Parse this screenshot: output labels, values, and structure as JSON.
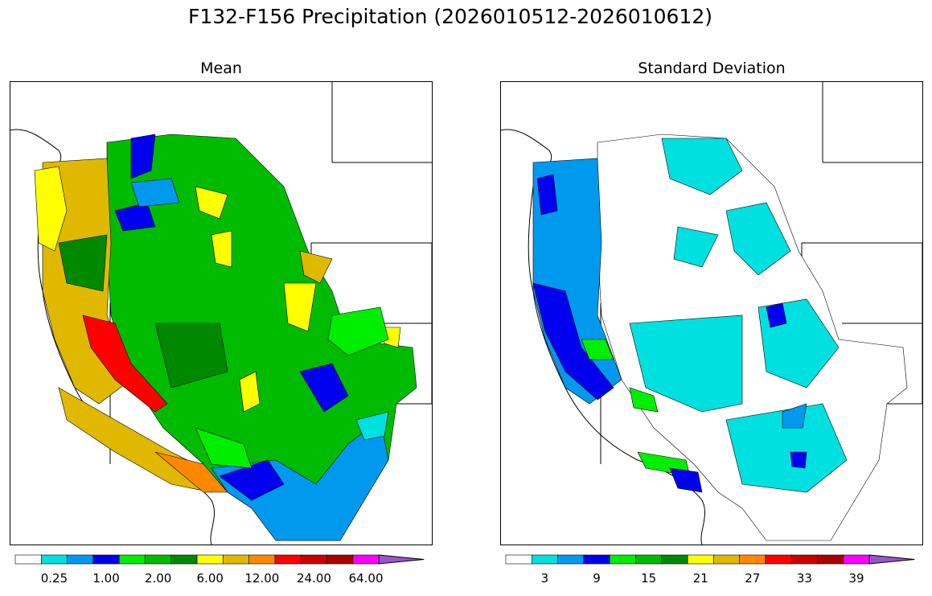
{
  "figure": {
    "title": "F132-F156 Precipitation (2026010512-2026010612)"
  },
  "panels": [
    {
      "id": "mean",
      "title": "Mean",
      "colorbar": {
        "colors": [
          "#ffffff",
          "#00e0e0",
          "#0099ee",
          "#0000ee",
          "#00ee00",
          "#00bb00",
          "#008800",
          "#ffff00",
          "#e0b800",
          "#ff8800",
          "#ff0000",
          "#cc0000",
          "#aa0000",
          "#ff00ff",
          "#9955cc"
        ],
        "tick_labels": [
          "0.25",
          "1.00",
          "2.00",
          "6.00",
          "12.00",
          "24.00",
          "64.00"
        ],
        "tick_boundaries": [
          1,
          3,
          5,
          7,
          9,
          11,
          13
        ]
      }
    },
    {
      "id": "stddev",
      "title": "Standard Deviation",
      "colorbar": {
        "colors": [
          "#ffffff",
          "#00e0e0",
          "#0099ee",
          "#0000ee",
          "#00ee00",
          "#00bb00",
          "#008800",
          "#ffff00",
          "#e0b800",
          "#ff8800",
          "#ff0000",
          "#cc0000",
          "#aa0000",
          "#ff00ff",
          "#9955cc"
        ],
        "tick_labels": [
          "3",
          "9",
          "15",
          "21",
          "27",
          "33",
          "39"
        ],
        "tick_boundaries": [
          1,
          3,
          5,
          7,
          9,
          11,
          13
        ]
      }
    }
  ]
}
